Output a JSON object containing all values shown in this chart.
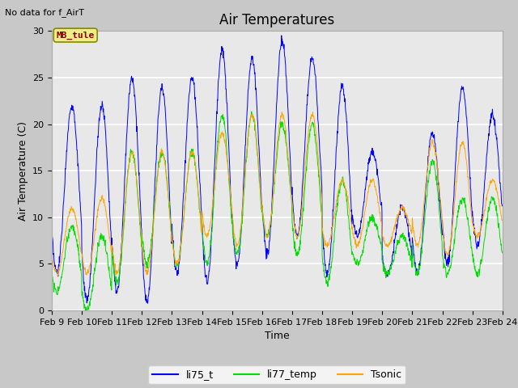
{
  "title": "Air Temperatures",
  "top_left_text": "No data for f_AirT",
  "xlabel": "Time",
  "ylabel": "Air Temperature (C)",
  "ylim": [
    0,
    30
  ],
  "xlim": [
    9,
    24
  ],
  "yticks": [
    0,
    5,
    10,
    15,
    20,
    25,
    30
  ],
  "xticks": [
    9,
    10,
    11,
    12,
    13,
    14,
    15,
    16,
    17,
    18,
    19,
    20,
    21,
    22,
    23,
    24
  ],
  "xtick_labels": [
    "Feb 9",
    "Feb 10",
    "Feb 11",
    "Feb 12",
    "Feb 13",
    "Feb 14",
    "Feb 15",
    "Feb 16",
    "Feb 17",
    "Feb 18",
    "Feb 19",
    "Feb 20",
    "Feb 21",
    "Feb 22",
    "Feb 23",
    "Feb 24"
  ],
  "legend_entries": [
    "li75_t",
    "li77_temp",
    "Tsonic"
  ],
  "line_colors": [
    "blue",
    "#00dd00",
    "orange"
  ],
  "annotation_text": "MB_tule",
  "annotation_box_facecolor": "#eeee88",
  "annotation_box_edgecolor": "#888800",
  "annotation_text_color": "#880000",
  "fig_facecolor": "#c8c8c8",
  "plot_facecolor": "#e8e8e8",
  "grid_color": "white",
  "title_fontsize": 12,
  "axis_label_fontsize": 9,
  "tick_fontsize": 8,
  "legend_fontsize": 9,
  "peaks_blue": [
    22,
    22,
    25,
    24,
    25,
    28,
    27,
    29,
    27,
    24,
    17,
    11,
    19,
    24,
    21
  ],
  "troughs_blue": [
    4,
    1,
    2,
    1,
    4,
    3,
    5,
    6,
    8,
    4,
    8,
    4,
    4,
    5,
    7
  ],
  "peaks_green": [
    9,
    8,
    17,
    17,
    17,
    21,
    21,
    20,
    20,
    14,
    10,
    8,
    16,
    12,
    12
  ],
  "troughs_green": [
    2,
    0,
    3,
    5,
    5,
    5,
    6,
    8,
    6,
    3,
    5,
    4,
    4,
    4,
    4
  ],
  "peaks_orange": [
    11,
    12,
    17,
    17,
    17,
    19,
    21,
    21,
    21,
    14,
    14,
    11,
    18,
    18,
    14
  ],
  "troughs_orange": [
    4,
    4,
    4,
    4,
    5,
    8,
    7,
    8,
    8,
    7,
    7,
    7,
    7,
    6,
    8
  ],
  "n_points_per_day": 96
}
